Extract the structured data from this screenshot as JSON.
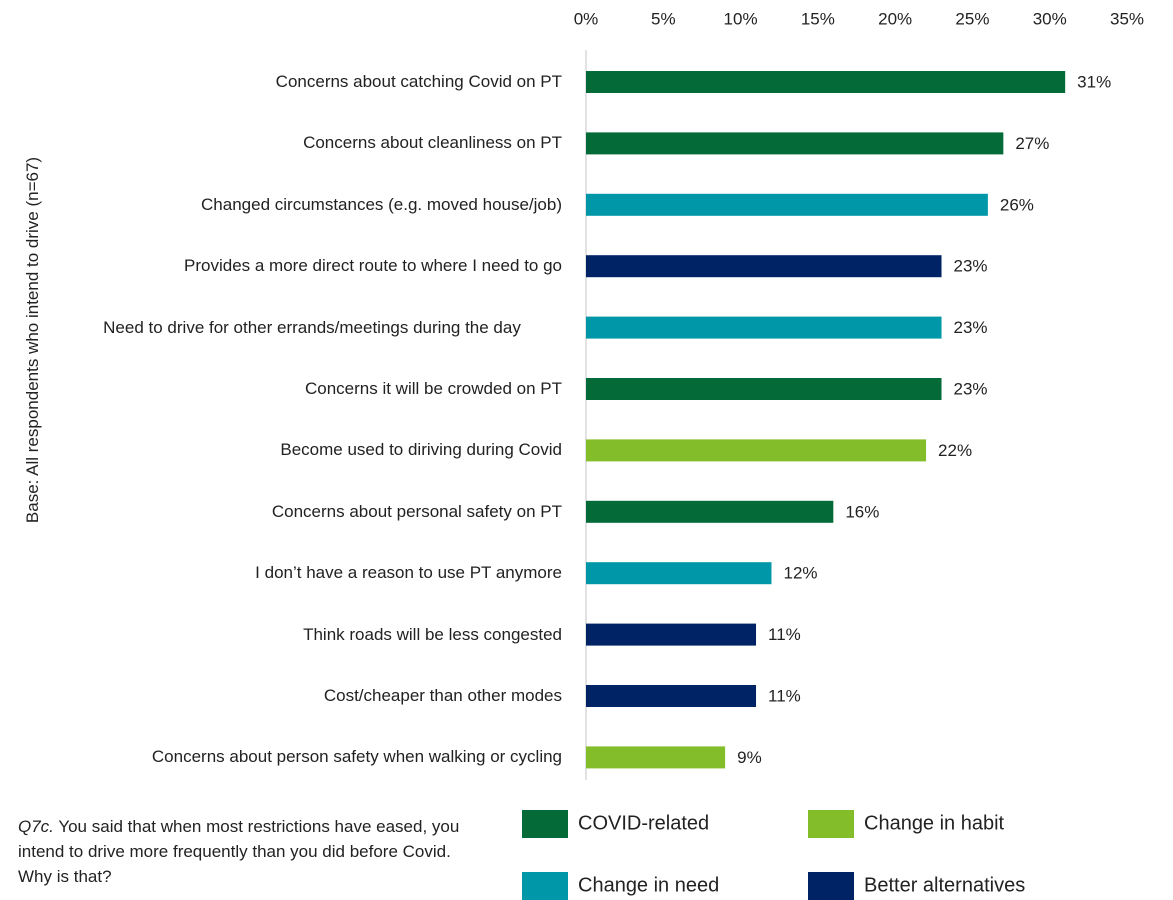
{
  "chart_data": {
    "type": "bar",
    "orientation": "horizontal",
    "y_axis_label": "Base: All respondents who intend to drive (n=67)",
    "note_label": "Q7c.",
    "note_text": "You said that when most restrictions have eased, you intend to drive more frequently than you did before Covid. Why is that?",
    "categories": [
      "Concerns about catching Covid on PT",
      "Concerns about cleanliness on PT",
      "Changed circumstances (e.g. moved house/job)",
      "Provides a more direct route to where I need to go",
      "Need to drive for other errands/meetings during the day",
      "Concerns it will be crowded on PT",
      "Become used to diriving during Covid",
      "Concerns about personal safety on PT",
      "I don’t have a reason to use PT anymore",
      "Think roads will be less congested",
      "Cost/cheaper than other modes",
      "Concerns about person safety when walking or cycling"
    ],
    "series": [
      {
        "name": "COVID-related",
        "color": "#046a38",
        "values": [
          31,
          27,
          null,
          null,
          null,
          23,
          null,
          16,
          null,
          null,
          null,
          null
        ],
        "value_labels": [
          "31%",
          "27%",
          null,
          null,
          null,
          "23%",
          null,
          "16%",
          null,
          null,
          null,
          null
        ]
      },
      {
        "name": "Change in habit",
        "color": "#84bd2a",
        "values": [
          null,
          null,
          null,
          null,
          null,
          null,
          22,
          null,
          null,
          null,
          null,
          9
        ],
        "value_labels": [
          null,
          null,
          null,
          null,
          null,
          null,
          "22%",
          null,
          null,
          null,
          null,
          "9%"
        ]
      },
      {
        "name": "Change in need",
        "color": "#0098a8",
        "values": [
          null,
          null,
          26,
          null,
          23,
          null,
          null,
          null,
          12,
          null,
          null,
          null
        ],
        "value_labels": [
          null,
          null,
          "26%",
          null,
          "23%",
          null,
          null,
          null,
          "12%",
          null,
          null,
          null
        ]
      },
      {
        "name": "Better alternatives",
        "color": "#002366",
        "values": [
          null,
          null,
          null,
          23,
          null,
          null,
          null,
          null,
          null,
          11,
          11,
          null
        ],
        "value_labels": [
          null,
          null,
          null,
          "23%",
          null,
          null,
          null,
          null,
          null,
          "11%",
          "11%",
          null
        ]
      }
    ],
    "xlim": [
      0,
      35
    ],
    "xticks": [
      {
        "value": 0,
        "label": "0%"
      },
      {
        "value": 5,
        "label": "5%"
      },
      {
        "value": 10,
        "label": "10%"
      },
      {
        "value": 15,
        "label": "15%"
      },
      {
        "value": 20,
        "label": "20%"
      },
      {
        "value": 25,
        "label": "25%"
      },
      {
        "value": 30,
        "label": "30%"
      },
      {
        "value": 35,
        "label": "35%"
      }
    ]
  }
}
